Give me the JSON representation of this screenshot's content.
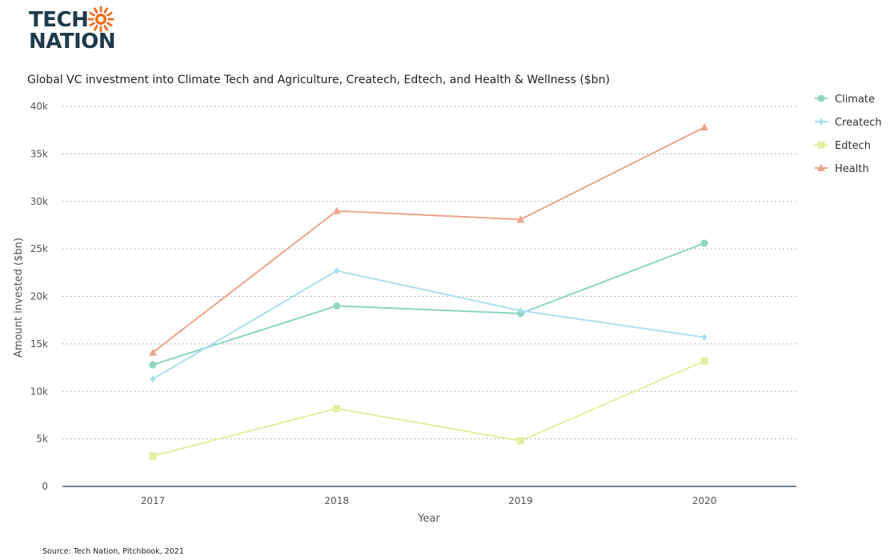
{
  "brand": {
    "line1": "TECH",
    "line2": "NATION"
  },
  "source_note": "Source: Tech Nation, Pitchbook, 2021",
  "chart_data": {
    "type": "line",
    "title": "Global VC investment into Climate Tech and Agriculture, Createch, Edtech, and Health & Wellness ($bn)",
    "xlabel": "Year",
    "ylabel": "Amount invested ($bn)",
    "categories": [
      "2017",
      "2018",
      "2019",
      "2020"
    ],
    "ylim": [
      0,
      40000
    ],
    "yticks": [
      0,
      5000,
      10000,
      15000,
      20000,
      25000,
      30000,
      35000,
      40000
    ],
    "ytick_labels": [
      "0",
      "5k",
      "10k",
      "15k",
      "20k",
      "25k",
      "30k",
      "35k",
      "40k"
    ],
    "grid": true,
    "legend_position": "top-right",
    "series": [
      {
        "name": "Climate",
        "values": [
          12800,
          19000,
          18200,
          25600
        ],
        "color": "#8fd3c1",
        "marker": "circle"
      },
      {
        "name": "Createch",
        "values": [
          11300,
          22700,
          18500,
          15700
        ],
        "color": "#a9e0ea",
        "marker": "diamond"
      },
      {
        "name": "Edtech",
        "values": [
          3200,
          8200,
          4800,
          13200
        ],
        "color": "#e3ee9f",
        "marker": "square"
      },
      {
        "name": "Health",
        "values": [
          14100,
          29000,
          28100,
          37800
        ],
        "color": "#eba58a",
        "marker": "triangle"
      }
    ]
  }
}
